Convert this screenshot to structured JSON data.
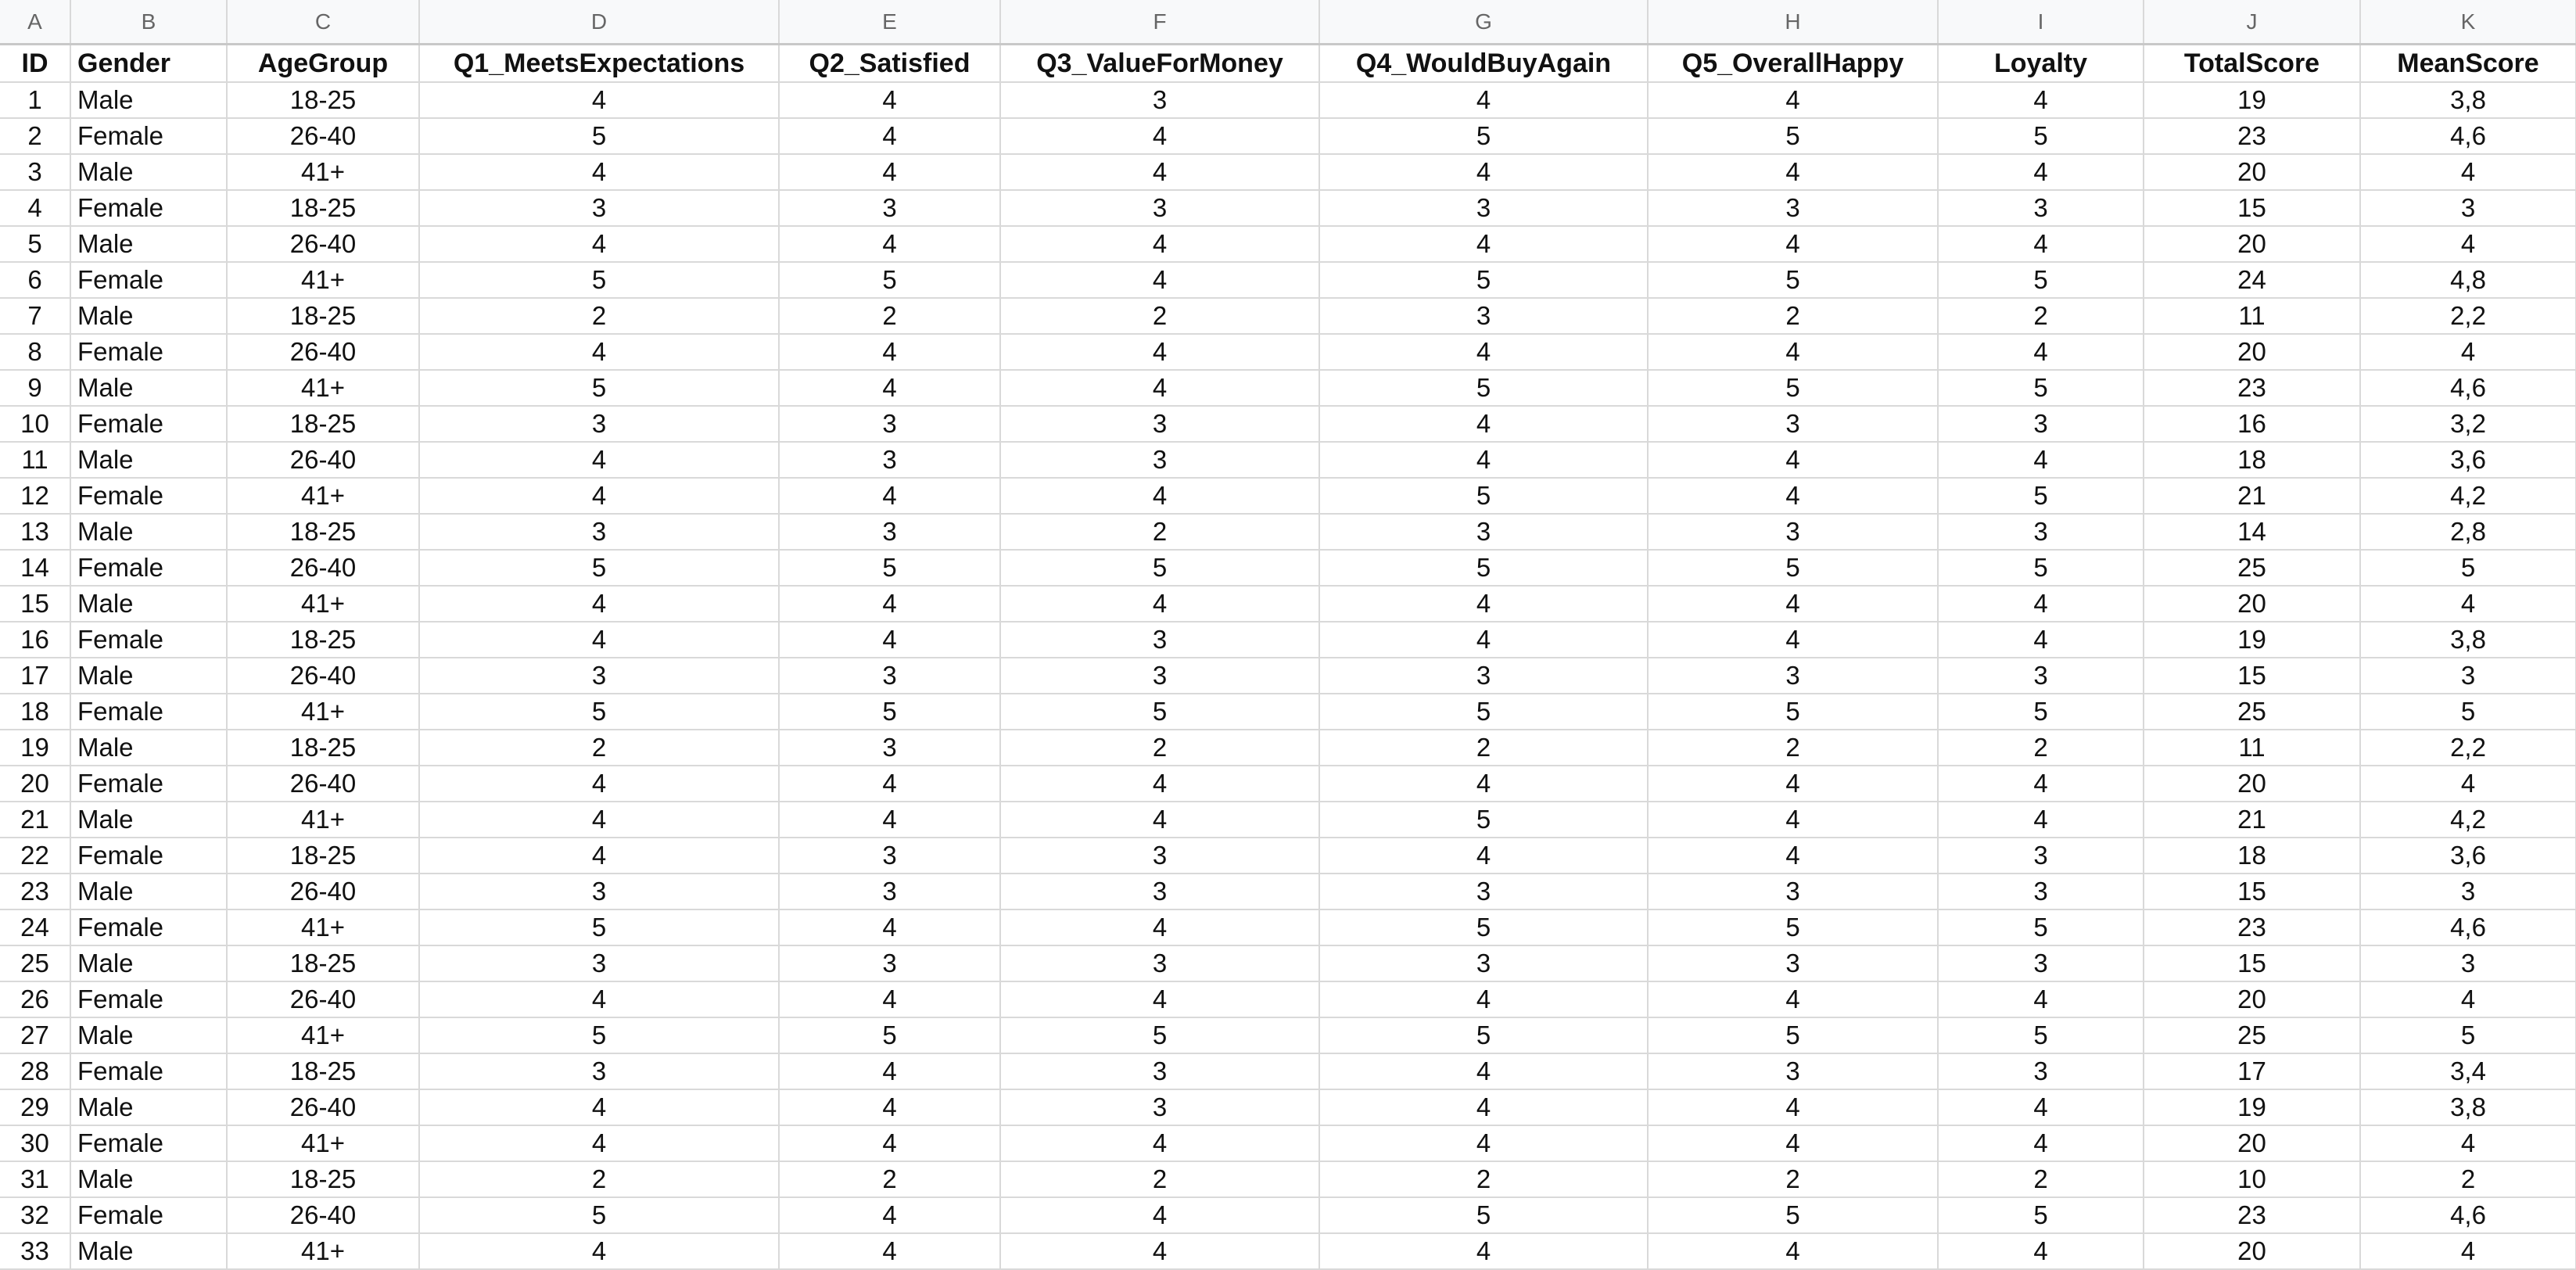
{
  "column_letters": [
    "A",
    "B",
    "C",
    "D",
    "E",
    "F",
    "G",
    "H",
    "I",
    "J",
    "K"
  ],
  "headers": [
    "ID",
    "Gender",
    "AgeGroup",
    "Q1_MeetsExpectations",
    "Q2_Satisfied",
    "Q3_ValueForMoney",
    "Q4_WouldBuyAgain",
    "Q5_OverallHappy",
    "Loyalty",
    "TotalScore",
    "MeanScore"
  ],
  "rows": [
    [
      "1",
      "Male",
      "18-25",
      "4",
      "4",
      "3",
      "4",
      "4",
      "4",
      "19",
      "3,8"
    ],
    [
      "2",
      "Female",
      "26-40",
      "5",
      "4",
      "4",
      "5",
      "5",
      "5",
      "23",
      "4,6"
    ],
    [
      "3",
      "Male",
      "41+",
      "4",
      "4",
      "4",
      "4",
      "4",
      "4",
      "20",
      "4"
    ],
    [
      "4",
      "Female",
      "18-25",
      "3",
      "3",
      "3",
      "3",
      "3",
      "3",
      "15",
      "3"
    ],
    [
      "5",
      "Male",
      "26-40",
      "4",
      "4",
      "4",
      "4",
      "4",
      "4",
      "20",
      "4"
    ],
    [
      "6",
      "Female",
      "41+",
      "5",
      "5",
      "4",
      "5",
      "5",
      "5",
      "24",
      "4,8"
    ],
    [
      "7",
      "Male",
      "18-25",
      "2",
      "2",
      "2",
      "3",
      "2",
      "2",
      "11",
      "2,2"
    ],
    [
      "8",
      "Female",
      "26-40",
      "4",
      "4",
      "4",
      "4",
      "4",
      "4",
      "20",
      "4"
    ],
    [
      "9",
      "Male",
      "41+",
      "5",
      "4",
      "4",
      "5",
      "5",
      "5",
      "23",
      "4,6"
    ],
    [
      "10",
      "Female",
      "18-25",
      "3",
      "3",
      "3",
      "4",
      "3",
      "3",
      "16",
      "3,2"
    ],
    [
      "11",
      "Male",
      "26-40",
      "4",
      "3",
      "3",
      "4",
      "4",
      "4",
      "18",
      "3,6"
    ],
    [
      "12",
      "Female",
      "41+",
      "4",
      "4",
      "4",
      "5",
      "4",
      "5",
      "21",
      "4,2"
    ],
    [
      "13",
      "Male",
      "18-25",
      "3",
      "3",
      "2",
      "3",
      "3",
      "3",
      "14",
      "2,8"
    ],
    [
      "14",
      "Female",
      "26-40",
      "5",
      "5",
      "5",
      "5",
      "5",
      "5",
      "25",
      "5"
    ],
    [
      "15",
      "Male",
      "41+",
      "4",
      "4",
      "4",
      "4",
      "4",
      "4",
      "20",
      "4"
    ],
    [
      "16",
      "Female",
      "18-25",
      "4",
      "4",
      "3",
      "4",
      "4",
      "4",
      "19",
      "3,8"
    ],
    [
      "17",
      "Male",
      "26-40",
      "3",
      "3",
      "3",
      "3",
      "3",
      "3",
      "15",
      "3"
    ],
    [
      "18",
      "Female",
      "41+",
      "5",
      "5",
      "5",
      "5",
      "5",
      "5",
      "25",
      "5"
    ],
    [
      "19",
      "Male",
      "18-25",
      "2",
      "3",
      "2",
      "2",
      "2",
      "2",
      "11",
      "2,2"
    ],
    [
      "20",
      "Female",
      "26-40",
      "4",
      "4",
      "4",
      "4",
      "4",
      "4",
      "20",
      "4"
    ],
    [
      "21",
      "Male",
      "41+",
      "4",
      "4",
      "4",
      "5",
      "4",
      "4",
      "21",
      "4,2"
    ],
    [
      "22",
      "Female",
      "18-25",
      "4",
      "3",
      "3",
      "4",
      "4",
      "3",
      "18",
      "3,6"
    ],
    [
      "23",
      "Male",
      "26-40",
      "3",
      "3",
      "3",
      "3",
      "3",
      "3",
      "15",
      "3"
    ],
    [
      "24",
      "Female",
      "41+",
      "5",
      "4",
      "4",
      "5",
      "5",
      "5",
      "23",
      "4,6"
    ],
    [
      "25",
      "Male",
      "18-25",
      "3",
      "3",
      "3",
      "3",
      "3",
      "3",
      "15",
      "3"
    ],
    [
      "26",
      "Female",
      "26-40",
      "4",
      "4",
      "4",
      "4",
      "4",
      "4",
      "20",
      "4"
    ],
    [
      "27",
      "Male",
      "41+",
      "5",
      "5",
      "5",
      "5",
      "5",
      "5",
      "25",
      "5"
    ],
    [
      "28",
      "Female",
      "18-25",
      "3",
      "4",
      "3",
      "4",
      "3",
      "3",
      "17",
      "3,4"
    ],
    [
      "29",
      "Male",
      "26-40",
      "4",
      "4",
      "3",
      "4",
      "4",
      "4",
      "19",
      "3,8"
    ],
    [
      "30",
      "Female",
      "41+",
      "4",
      "4",
      "4",
      "4",
      "4",
      "4",
      "20",
      "4"
    ],
    [
      "31",
      "Male",
      "18-25",
      "2",
      "2",
      "2",
      "2",
      "2",
      "2",
      "10",
      "2"
    ],
    [
      "32",
      "Female",
      "26-40",
      "5",
      "4",
      "4",
      "5",
      "5",
      "5",
      "23",
      "4,6"
    ],
    [
      "33",
      "Male",
      "41+",
      "4",
      "4",
      "4",
      "4",
      "4",
      "4",
      "20",
      "4"
    ]
  ]
}
